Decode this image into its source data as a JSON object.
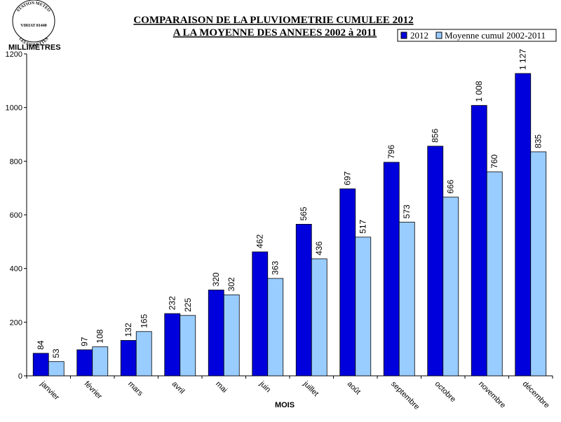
{
  "chart_data": {
    "type": "bar",
    "title_line1": "COMPARAISON DE LA PLUVIOMETRIE CUMULEE 2012",
    "title_line2": "A LA MOYENNE DES ANNEES 2002 à 2011",
    "xlabel": "MOIS",
    "ylabel": "MILLIMETRES",
    "ylim": [
      0,
      1200
    ],
    "yticks": [
      0,
      200,
      400,
      600,
      800,
      1000,
      1200
    ],
    "categories": [
      "janvier",
      "février",
      "mars",
      "avril",
      "mai",
      "juin",
      "juillet",
      "août",
      "septembre",
      "octobre",
      "novembre",
      "décembre"
    ],
    "series": [
      {
        "name": "2012",
        "color": "#0000dd",
        "values": [
          84,
          97,
          132,
          232,
          320,
          462,
          565,
          697,
          796,
          856,
          1008,
          1127
        ],
        "labels": [
          "84",
          "97",
          "132",
          "232",
          "320",
          "462",
          "565",
          "697",
          "796",
          "856",
          "1 008",
          "1 127"
        ]
      },
      {
        "name": "Moyenne cumul 2002-2011",
        "color": "#99ccff",
        "values": [
          53,
          108,
          165,
          225,
          302,
          363,
          436,
          517,
          573,
          666,
          760,
          835
        ],
        "labels": [
          "53",
          "108",
          "165",
          "225",
          "302",
          "363",
          "436",
          "517",
          "573",
          "666",
          "760",
          "835"
        ]
      }
    ],
    "legend_position": "top-right",
    "grid": false
  },
  "logo": {
    "top_text": "STATION METEO",
    "middle_text": "VIRIAT 01440",
    "bottom_text": "LES FAUVETTES"
  }
}
